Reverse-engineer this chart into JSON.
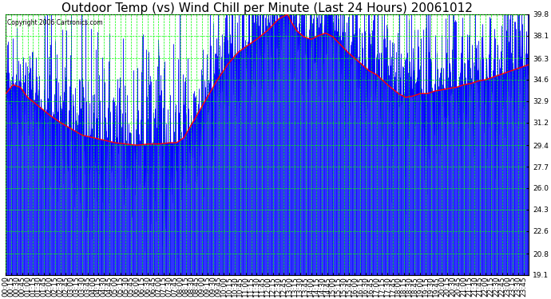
{
  "title": "Outdoor Temp (vs) Wind Chill per Minute (Last 24 Hours) 20061012",
  "copyright_text": "Copyright 2006 Cartronics.com",
  "yticks": [
    19.1,
    20.8,
    22.6,
    24.3,
    26.0,
    27.7,
    29.4,
    31.2,
    32.9,
    34.6,
    36.3,
    38.1,
    39.8
  ],
  "ymin": 19.1,
  "ymax": 39.8,
  "bg_color": "#ffffff",
  "plot_bg_color": "#ffffff",
  "grid_color": "#00ff00",
  "blue_color": "#0000ff",
  "red_color": "#ff0000",
  "title_fontsize": 11,
  "tick_fontsize": 6.5,
  "n_points": 1440,
  "xtick_interval": 15,
  "figwidth": 6.9,
  "figheight": 3.75,
  "dpi": 100
}
